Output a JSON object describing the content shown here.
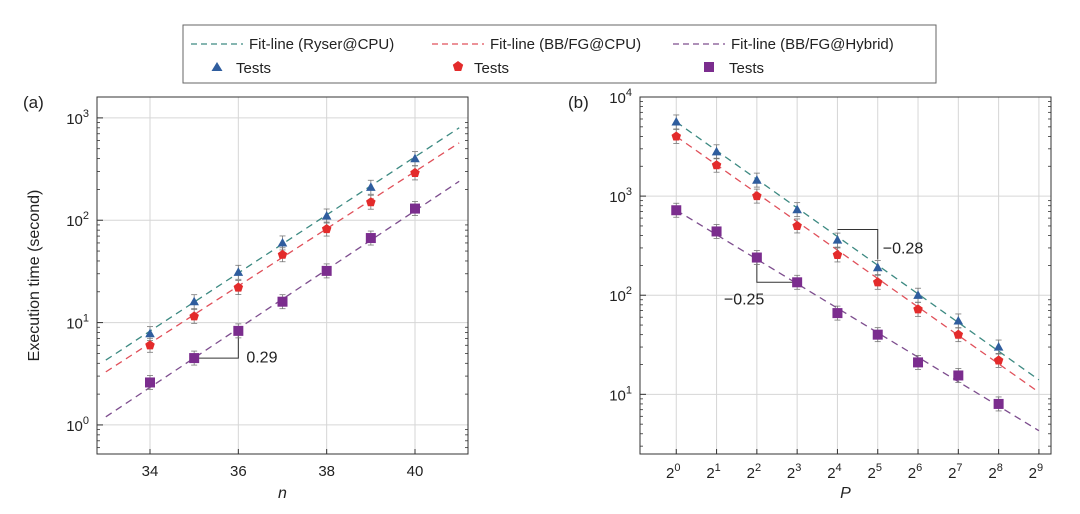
{
  "legend": {
    "fit_entries": [
      {
        "label": "Fit-line (Ryser@CPU)",
        "color": "#3d8a82"
      },
      {
        "label": "Fit-line (BB/FG@CPU)",
        "color": "#e0505a"
      },
      {
        "label": "Fit-line (BB/FG@Hybrid)",
        "color": "#7d4d8e"
      }
    ],
    "test_entries": [
      {
        "label": "Tests",
        "color": "#2f5d9e",
        "marker": "triangle"
      },
      {
        "label": "Tests",
        "color": "#e32b2b",
        "marker": "pentagon"
      },
      {
        "label": "Tests",
        "color": "#7b2d8e",
        "marker": "square"
      }
    ]
  },
  "chart_data": [
    {
      "panel_label": "(a)",
      "type": "scatter",
      "yscale": "log",
      "xlabel": "n",
      "ylabel": "Execution time (second)",
      "xlim": [
        32.8,
        41.2
      ],
      "ylim": [
        0.52,
        1600
      ],
      "xticks": [
        34,
        36,
        38,
        40
      ],
      "yticks": [
        {
          "value": 1,
          "label": "10",
          "exp": "0"
        },
        {
          "value": 10,
          "label": "10",
          "exp": "1"
        },
        {
          "value": 100,
          "label": "10",
          "exp": "2"
        },
        {
          "value": 1000,
          "label": "10",
          "exp": "3"
        }
      ],
      "series": [
        {
          "name": "Ryser@CPU",
          "marker": "triangle",
          "color": "#2f5d9e",
          "fit_color": "#3d8a82",
          "x": [
            34,
            35,
            36,
            37,
            38,
            39,
            40
          ],
          "y": [
            7.8,
            16,
            31,
            60,
            110,
            210,
            400
          ],
          "fit_x": [
            33,
            41
          ],
          "fit_y": [
            4.3,
            800
          ]
        },
        {
          "name": "BB/FG@CPU",
          "marker": "pentagon",
          "color": "#e32b2b",
          "fit_color": "#e0505a",
          "x": [
            34,
            35,
            36,
            37,
            38,
            39,
            40
          ],
          "y": [
            6,
            11.5,
            22,
            46,
            82,
            150,
            290
          ],
          "fit_x": [
            33,
            41
          ],
          "fit_y": [
            3.3,
            570
          ]
        },
        {
          "name": "BB/FG@Hybrid",
          "marker": "square",
          "color": "#7b2d8e",
          "fit_color": "#7d4d8e",
          "x": [
            34,
            35,
            36,
            37,
            38,
            39,
            40
          ],
          "y": [
            2.6,
            4.5,
            8.3,
            16,
            32,
            67,
            130
          ],
          "fit_x": [
            33,
            41
          ],
          "fit_y": [
            1.2,
            240
          ]
        }
      ],
      "slope_annotation": {
        "text": "0.29",
        "x1": 35,
        "y1": 4.5,
        "x2": 36,
        "y2": 8.3
      }
    },
    {
      "panel_label": "(b)",
      "type": "scatter",
      "yscale": "log",
      "xlabel": "P",
      "ylabel": "",
      "xlim": [
        -0.9,
        9.3
      ],
      "ylim": [
        2.5,
        10000
      ],
      "xticks": [
        {
          "value": 0,
          "label": "2",
          "exp": "0"
        },
        {
          "value": 1,
          "label": "2",
          "exp": "1"
        },
        {
          "value": 2,
          "label": "2",
          "exp": "2"
        },
        {
          "value": 3,
          "label": "2",
          "exp": "3"
        },
        {
          "value": 4,
          "label": "2",
          "exp": "4"
        },
        {
          "value": 5,
          "label": "2",
          "exp": "5"
        },
        {
          "value": 6,
          "label": "2",
          "exp": "6"
        },
        {
          "value": 7,
          "label": "2",
          "exp": "7"
        },
        {
          "value": 8,
          "label": "2",
          "exp": "8"
        },
        {
          "value": 9,
          "label": "2",
          "exp": "9"
        }
      ],
      "yticks": [
        {
          "value": 10,
          "label": "10",
          "exp": "1"
        },
        {
          "value": 100,
          "label": "10",
          "exp": "2"
        },
        {
          "value": 1000,
          "label": "10",
          "exp": "3"
        },
        {
          "value": 10000,
          "label": "10",
          "exp": "4"
        }
      ],
      "series": [
        {
          "name": "Ryser@CPU",
          "marker": "triangle",
          "color": "#2f5d9e",
          "fit_color": "#3d8a82",
          "x": [
            0,
            1,
            2,
            3,
            4,
            5,
            6,
            7,
            8
          ],
          "y": [
            5600,
            2800,
            1450,
            730,
            360,
            190,
            100,
            55,
            30
          ],
          "fit_x": [
            0,
            9
          ],
          "fit_y": [
            5600,
            14
          ]
        },
        {
          "name": "BB/FG@CPU",
          "marker": "pentagon",
          "color": "#e32b2b",
          "fit_color": "#e0505a",
          "x": [
            0,
            1,
            2,
            3,
            4,
            5,
            6,
            7,
            8
          ],
          "y": [
            4000,
            2050,
            1000,
            500,
            255,
            135,
            72,
            40,
            22
          ],
          "fit_x": [
            0,
            9
          ],
          "fit_y": [
            4000,
            10.5
          ]
        },
        {
          "name": "BB/FG@Hybrid",
          "marker": "square",
          "color": "#7b2d8e",
          "fit_color": "#7d4d8e",
          "x": [
            0,
            1,
            2,
            3,
            4,
            5,
            6,
            7,
            8
          ],
          "y": [
            720,
            440,
            240,
            135,
            66,
            40,
            21,
            15.5,
            8
          ],
          "fit_x": [
            0,
            9
          ],
          "fit_y": [
            720,
            4.3
          ]
        }
      ],
      "slope_annotations": [
        {
          "text": "−0.28",
          "x1": 4,
          "y1": 460,
          "x2": 5,
          "y2": 230,
          "vertical_at": "end"
        },
        {
          "text": "−0.25",
          "x1": 2,
          "y1": 240,
          "x2": 3,
          "y2": 135,
          "vertical_at": "start"
        }
      ]
    }
  ]
}
